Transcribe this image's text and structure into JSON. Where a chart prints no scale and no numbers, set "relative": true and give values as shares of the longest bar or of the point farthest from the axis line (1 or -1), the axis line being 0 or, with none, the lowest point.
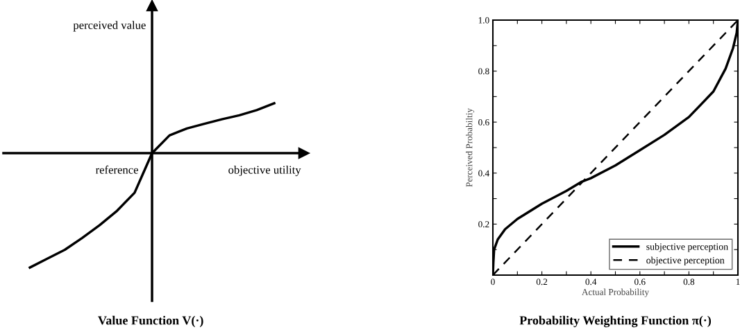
{
  "chart_data": [
    {
      "type": "line",
      "relative": true,
      "title": "Value Function V(·)",
      "annotations": [
        "perceived value",
        "reference",
        "objective utility"
      ],
      "categories": [
        null,
        null,
        null,
        null,
        null,
        null,
        null,
        null,
        null,
        null,
        null,
        null,
        null,
        null,
        null
      ],
      "series": [
        {
          "color": "#000000",
          "values": [
            -1,
            -0.922,
            -0.845,
            -0.741,
            -0.629,
            -0.503,
            -0.346,
            0,
            0.155,
            0.216,
            0.257,
            0.296,
            0.331,
            0.376,
            0.436
          ]
        }
      ],
      "line_style": "solid",
      "legend": false,
      "grid": false
    },
    {
      "type": "line",
      "title": "Probability Weighting Function π(·)",
      "xlabel": "Actual Probability",
      "ylabel": "Perceived Probabiltiy",
      "xlim": [
        0,
        1
      ],
      "ylim": [
        0,
        1
      ],
      "xticks": [
        0,
        {
          "value": 0.1,
          "label": null
        },
        0.2,
        {
          "value": 0.3,
          "label": null
        },
        0.4,
        {
          "value": 0.5,
          "label": null
        },
        0.6,
        {
          "value": 0.7,
          "label": null
        },
        0.8,
        {
          "value": 0.9,
          "label": null
        },
        1
      ],
      "yticks": [
        {
          "value": 0,
          "label": null
        },
        {
          "value": 0.1,
          "label": null
        },
        0.2,
        {
          "value": 0.3,
          "label": null
        },
        0.4,
        {
          "value": 0.5,
          "label": null
        },
        0.6,
        {
          "value": 0.7,
          "label": null
        },
        0.8,
        {
          "value": 0.9,
          "label": null
        },
        {
          "value": 1,
          "label": "1.0"
        }
      ],
      "series": [
        {
          "name": "subjective perception",
          "color": "#000000",
          "line_style": "solid",
          "x": [
            0,
            0.002,
            0.005,
            0.02,
            0.05,
            0.1,
            0.2,
            0.3,
            0.36,
            0.4,
            0.5,
            0.6,
            0.7,
            0.8,
            0.9,
            0.95,
            0.98,
            0.995,
            1
          ],
          "values": [
            0,
            0.05,
            0.1,
            0.14,
            0.18,
            0.22,
            0.28,
            0.33,
            0.365,
            0.38,
            0.43,
            0.49,
            0.55,
            0.62,
            0.72,
            0.81,
            0.89,
            0.95,
            1
          ]
        },
        {
          "name": "objective perception",
          "color": "#000000",
          "line_style": "dashed",
          "x": [
            0,
            1
          ],
          "values": [
            0,
            1
          ]
        }
      ],
      "legend": "bottom right",
      "grid": false
    }
  ]
}
